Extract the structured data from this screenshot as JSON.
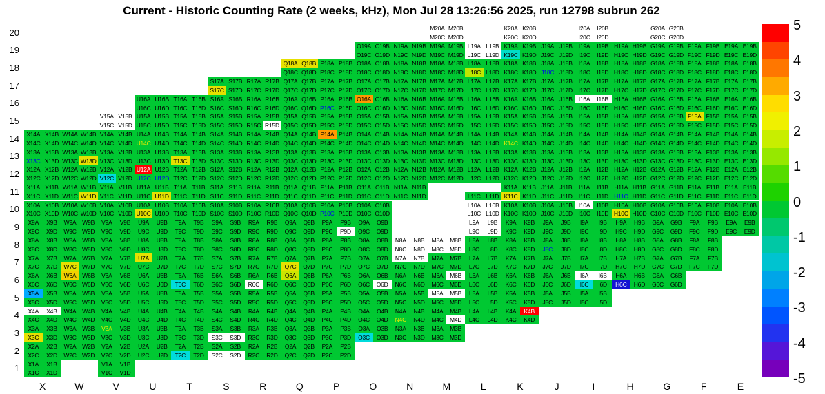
{
  "title": "Current - Historic Counting Rate (2 weeks, kHz), Mon Jul 28 13:26:56 2025, run 12798 subrun 262",
  "chart_data": {
    "type": "heatmap",
    "x_categories": [
      "X",
      "W",
      "V",
      "U",
      "T",
      "S",
      "R",
      "Q",
      "P",
      "O",
      "N",
      "M",
      "L",
      "K",
      "J",
      "I",
      "H",
      "G",
      "F",
      "E"
    ],
    "y_categories": [
      20,
      19,
      18,
      17,
      16,
      15,
      14,
      13,
      12,
      11,
      10,
      9,
      8,
      7,
      6,
      5,
      4,
      3,
      2,
      1
    ],
    "subcells": [
      "A",
      "B",
      "C",
      "D"
    ],
    "default_cell_color": "#00C832",
    "no_data_color": "#FFFFFF",
    "rows": [
      {
        "row": 20,
        "cols": [
          "M",
          "K",
          "I",
          "G"
        ],
        "bg": "#FFFFFF"
      },
      {
        "row": 19,
        "from": "O",
        "to": "E"
      },
      {
        "row": 18,
        "from": "Q",
        "to": "E"
      },
      {
        "row": 17,
        "from": "S",
        "to": "E"
      },
      {
        "row": 16,
        "from": "U",
        "to": "E"
      },
      {
        "row": 15,
        "from": "V",
        "to": "E"
      },
      {
        "row": 14,
        "from": "X",
        "to": "E"
      },
      {
        "row": 13,
        "from": "X",
        "to": "E"
      },
      {
        "row": 12,
        "from": "X",
        "to": "E"
      },
      {
        "row": 11,
        "from": "X",
        "to": "E"
      },
      {
        "row": 10,
        "from": "X",
        "to": "E"
      },
      {
        "row": 9,
        "from": "X",
        "to": "E"
      },
      {
        "row": 8,
        "from": "X",
        "to": "F"
      },
      {
        "row": 7,
        "from": "X",
        "to": "F"
      },
      {
        "row": 6,
        "from": "X",
        "to": "G"
      },
      {
        "row": 5,
        "from": "X",
        "to": "I"
      },
      {
        "row": 4,
        "from": "X",
        "to": "K"
      },
      {
        "row": 3,
        "from": "X",
        "to": "M"
      },
      {
        "row": 2,
        "from": "X",
        "to": "P"
      },
      {
        "row": 1,
        "cols": [
          "X",
          "V"
        ]
      }
    ],
    "absent_cells": [
      "M11A",
      "M11B",
      "M11C",
      "M11D",
      "L11A",
      "L11B",
      "N10A",
      "N10B",
      "N10C",
      "N10D",
      "M10A",
      "M10B",
      "M10C",
      "M10D",
      "N9A",
      "N9B",
      "N9C",
      "N9D",
      "M9A",
      "M9B",
      "M9C",
      "M9D"
    ],
    "white_cells": [
      "L19A",
      "L19B",
      "L19C",
      "L19D",
      "V15A",
      "V15B",
      "V15C",
      "V15D",
      "R15D",
      "I16A",
      "I16B",
      "L10A",
      "L10B",
      "L10C",
      "L10D",
      "I10A",
      "L9A",
      "L9B",
      "L9C",
      "L9D",
      "P9D",
      "N8A",
      "N8B",
      "N8C",
      "N8D",
      "M8A",
      "M8B",
      "M8C",
      "M8D",
      "N7A",
      "N7B",
      "R6C",
      "O6D",
      "M6B",
      "I6A",
      "I6B",
      "M5A",
      "M5B",
      "X4A",
      "X4B",
      "M4D",
      "S3C",
      "S3D",
      "S2C",
      "S2D"
    ],
    "colored_cells": {
      "Q18A": "#E6E000",
      "Q18B": "#E6E000",
      "L18C": "#BCE800",
      "S17C": "#E6E000",
      "O16A": "#FF9900",
      "F15A": "#E6E000",
      "P14A": "#FF9900",
      "W13D": "#E6E000",
      "T13C": "#E6E000",
      "U12A": "#FF0000",
      "V12C": "#00DCDC",
      "K19C": "#00DCC8",
      "W11D": "#E6E000",
      "U11D": "#E6E000",
      "K11C": "#E6E000",
      "U10C": "#E6E000",
      "H10C": "#E6E000",
      "U7A": "#E6E000",
      "W7C": "#E6E000",
      "Q7C": "#E6E000",
      "W6A": "#F0D000",
      "Q6A": "#CCE400",
      "T6C": "#00DCDC",
      "I6C": "#00DCDC",
      "H6C": "#1414D2",
      "X5A": "#00AAFF",
      "K4B": "#FF0000",
      "X3C": "#E6E000",
      "O3C": "#00DCDC",
      "T2C": "#00DCDC"
    },
    "text_color_cells": {
      "X13C": "#0000EE",
      "P16C": "#0000EE",
      "J18C": "#0000EE",
      "U12C": "#0000EE",
      "U12D": "#0000EE",
      "P10C": "#0000EE",
      "H11C": "#0000EE",
      "J8C": "#0000EE",
      "U14C": "#E8E800",
      "K14C": "#E8E800",
      "N4C": "#E8E800",
      "V3A": "#E8E800"
    },
    "colorbar": {
      "max": 5,
      "min": -5,
      "ticks": [
        5,
        4,
        3,
        2,
        1,
        0,
        -1,
        -2,
        -3,
        -4,
        -5
      ],
      "band_colors": [
        "#FF0000",
        "#FF4400",
        "#FF7700",
        "#FFAA00",
        "#FFDD00",
        "#F0F000",
        "#C8EE00",
        "#96E800",
        "#55DC00",
        "#1ED200",
        "#00C832",
        "#00C86E",
        "#00C8A5",
        "#00C3D0",
        "#00A5E8",
        "#0080FF",
        "#0055FF",
        "#2233F0",
        "#5516D8",
        "#7700BB"
      ]
    }
  }
}
